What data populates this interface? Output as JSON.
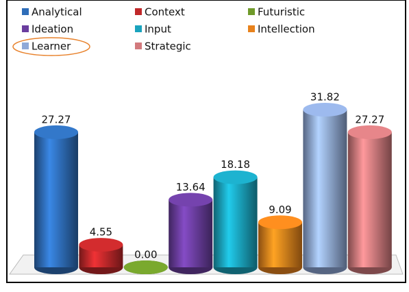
{
  "chart_data": {
    "type": "bar",
    "categories": [
      "Analytical",
      "Context",
      "Futuristic",
      "Ideation",
      "Input",
      "Intellection",
      "Learner",
      "Strategic"
    ],
    "values": [
      27.27,
      4.55,
      0.0,
      13.64,
      18.18,
      9.09,
      31.82,
      27.27
    ],
    "value_labels": [
      "27.27",
      "4.55",
      "0.00",
      "13.64",
      "18.18",
      "9.09",
      "31.82",
      "27.27"
    ],
    "colors": [
      "#2e6db8",
      "#c0282a",
      "#6f9a2a",
      "#6a3d9e",
      "#1aa3bd",
      "#e8821c",
      "#8fa9d8",
      "#d27a7d"
    ]
  }
}
